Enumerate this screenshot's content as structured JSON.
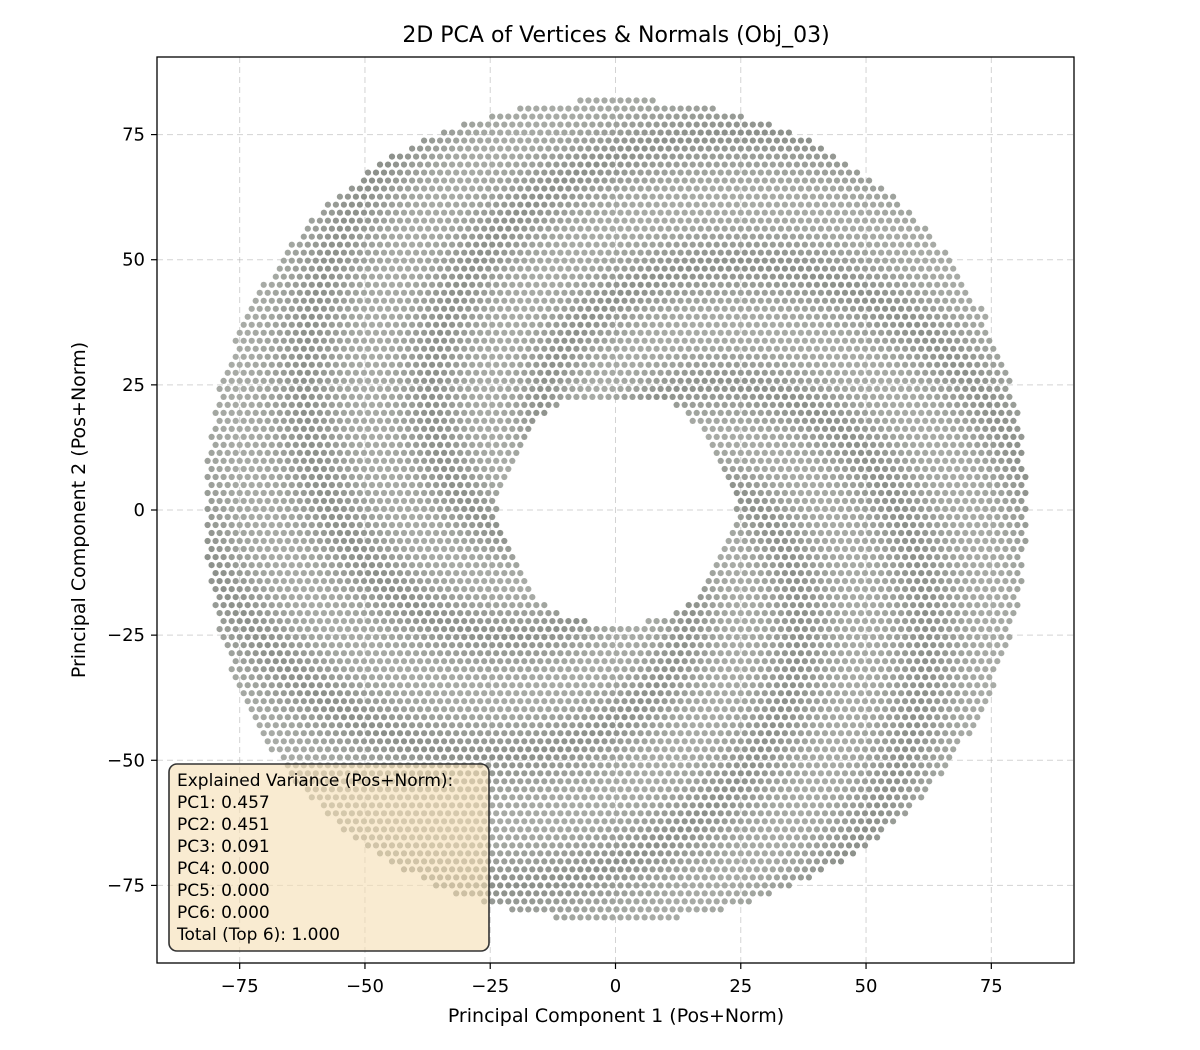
{
  "chart_data": {
    "type": "scatter",
    "title": "2D PCA of Vertices & Normals (Obj_03)",
    "xlabel": "Principal Component 1 (Pos+Norm)",
    "ylabel": "Principal Component 2 (Pos+Norm)",
    "xlim": [
      -91.5,
      91.5
    ],
    "ylim": [
      -90.5,
      90.5
    ],
    "xticks": [
      -75,
      -50,
      -25,
      0,
      25,
      50,
      75
    ],
    "yticks": [
      -75,
      -50,
      -25,
      0,
      25,
      50,
      75
    ],
    "xtick_labels": [
      "−75",
      "−50",
      "−25",
      "0",
      "25",
      "50",
      "75"
    ],
    "ytick_labels": [
      "−75",
      "−50",
      "−25",
      "0",
      "25",
      "50",
      "75"
    ],
    "grid": true,
    "point_color": "#8c908a",
    "series": [
      {
        "shape": "annulus",
        "center": [
          0,
          0
        ],
        "inner_radius": 23,
        "outer_radius": 83,
        "approx_spacing": 1.6
      }
    ],
    "annotation": {
      "placement": "bottom-left",
      "lines": [
        "Explained Variance (Pos+Norm):",
        "PC1: 0.457",
        "PC2: 0.451",
        "PC3: 0.091",
        "PC4: 0.000",
        "PC5: 0.000",
        "PC6: 0.000",
        "Total (Top 6): 1.000"
      ]
    }
  }
}
